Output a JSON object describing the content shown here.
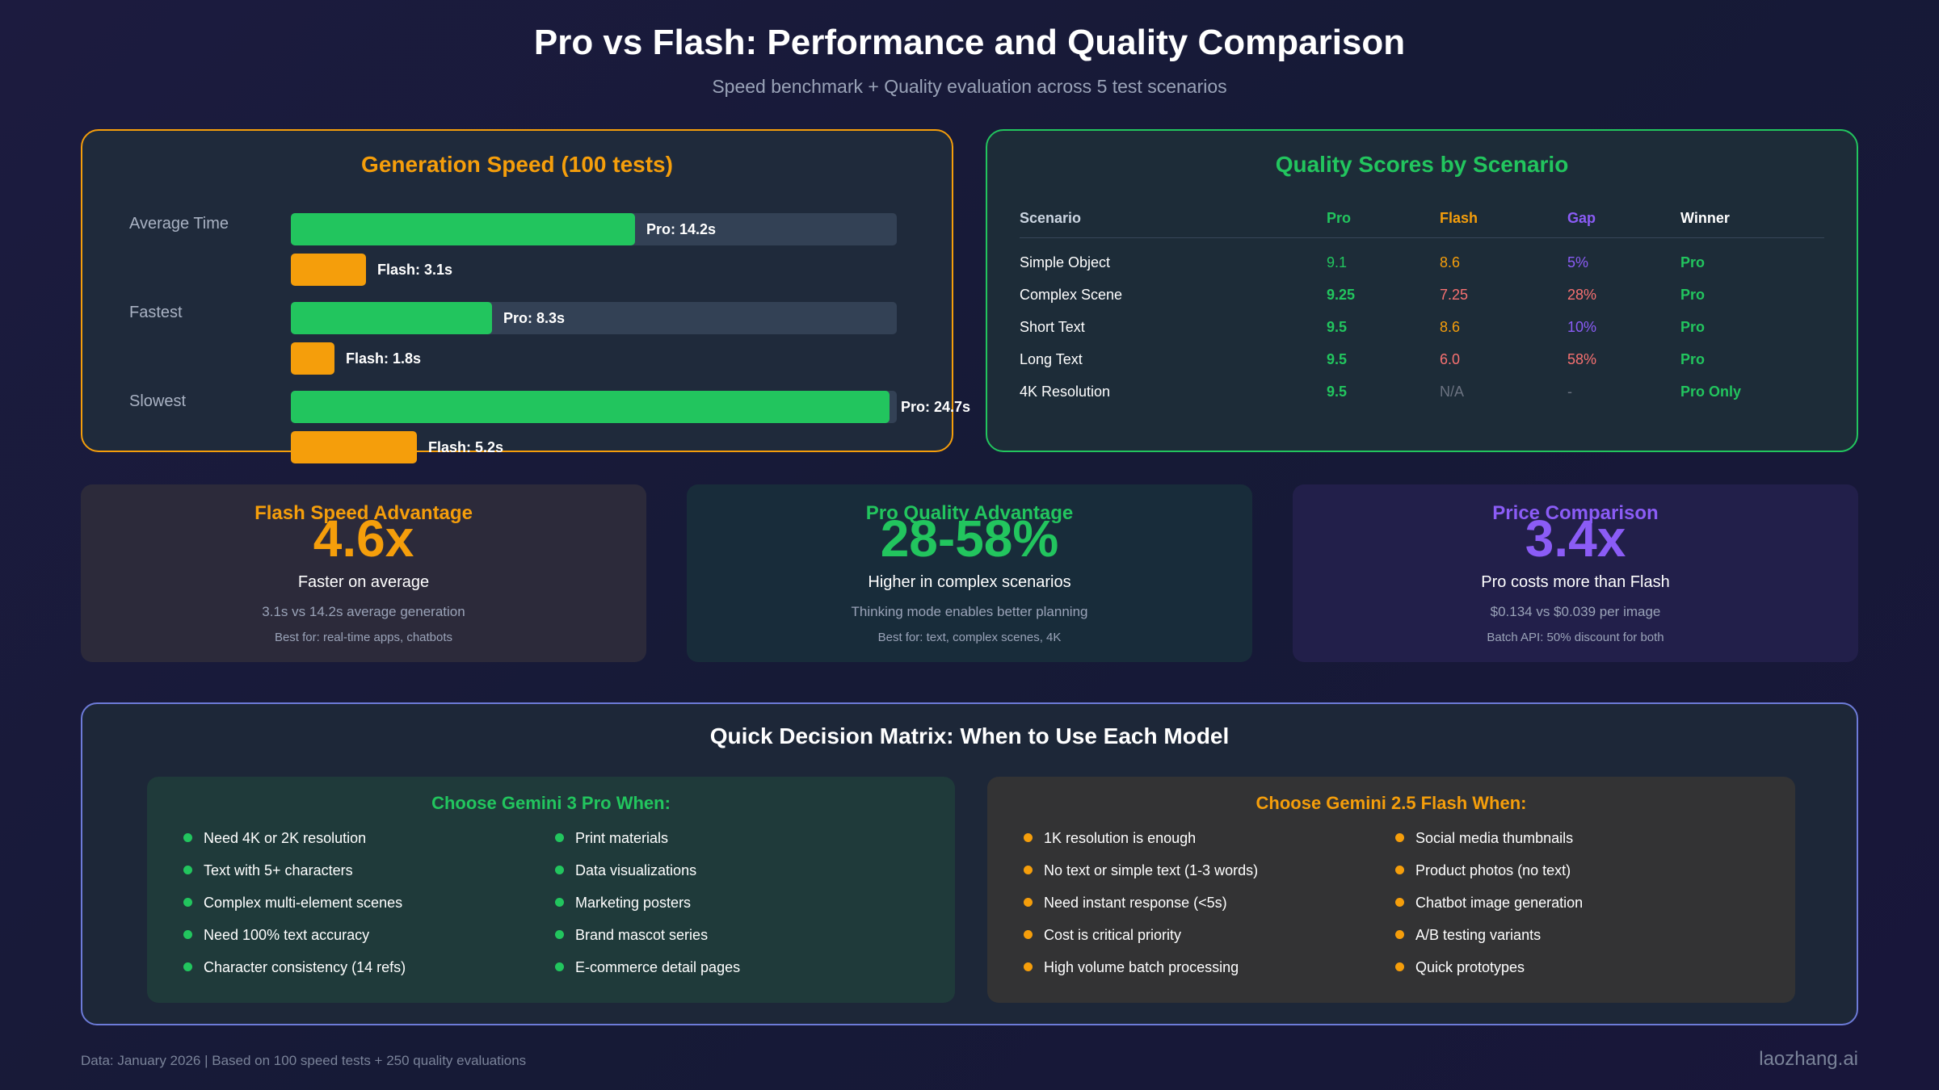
{
  "header": {
    "title": "Pro vs Flash: Performance and Quality Comparison",
    "subtitle": "Speed benchmark + Quality evaluation across 5 test scenarios"
  },
  "colors": {
    "pro": "#22c55e",
    "flash": "#f59e0b",
    "gap": "#8b5cf6",
    "gap_high": "#f87171",
    "track": "#334155"
  },
  "chart_data": [
    {
      "type": "bar",
      "orientation": "horizontal",
      "title": "Generation Speed (100 tests)",
      "categories": [
        "Average Time",
        "Fastest",
        "Slowest"
      ],
      "series": [
        {
          "name": "Pro",
          "values": [
            14.2,
            8.3,
            24.7
          ],
          "labels": [
            "Pro: 14.2s",
            "Pro: 8.3s",
            "Pro: 24.7s"
          ]
        },
        {
          "name": "Flash",
          "values": [
            3.1,
            1.8,
            5.2
          ],
          "labels": [
            "Flash: 3.1s",
            "Flash: 1.8s",
            "Flash: 5.2s"
          ]
        }
      ],
      "xlim": [
        0,
        25
      ]
    },
    {
      "type": "table",
      "title": "Quality Scores by Scenario",
      "columns": [
        "Scenario",
        "Pro",
        "Flash",
        "Gap",
        "Winner"
      ],
      "rows": [
        [
          "Simple Object",
          "9.1",
          "8.6",
          "5%",
          "Pro"
        ],
        [
          "Complex Scene",
          "9.25",
          "7.25",
          "28%",
          "Pro"
        ],
        [
          "Short Text",
          "9.5",
          "8.6",
          "10%",
          "Pro"
        ],
        [
          "Long Text",
          "9.5",
          "6.0",
          "58%",
          "Pro"
        ],
        [
          "4K Resolution",
          "9.5",
          "N/A",
          "-",
          "Pro Only"
        ]
      ]
    }
  ],
  "cards": [
    {
      "title": "Flash Speed Advantage",
      "big": "4.6x",
      "desc": "Faster on average",
      "sub": "3.1s vs 14.2s average generation",
      "best": "Best for: real-time apps, chatbots",
      "color": "#f59e0b"
    },
    {
      "title": "Pro Quality Advantage",
      "big": "28-58%",
      "desc": "Higher in complex scenarios",
      "sub": "Thinking mode enables better planning",
      "best": "Best for: text, complex scenes, 4K",
      "color": "#22c55e"
    },
    {
      "title": "Price Comparison",
      "big": "3.4x",
      "desc": "Pro costs more than Flash",
      "sub": "$0.134 vs $0.039 per image",
      "best": "Batch API: 50% discount for both",
      "color": "#8b5cf6"
    }
  ],
  "matrix": {
    "title": "Quick Decision Matrix: When to Use Each Model",
    "pro": {
      "title": "Choose Gemini 3 Pro When:",
      "left": [
        "Need 4K or 2K resolution",
        "Text with 5+ characters",
        "Complex multi-element scenes",
        "Need 100% text accuracy",
        "Character consistency (14 refs)"
      ],
      "right": [
        "Print materials",
        "Data visualizations",
        "Marketing posters",
        "Brand mascot series",
        "E-commerce detail pages"
      ]
    },
    "flash": {
      "title": "Choose Gemini 2.5 Flash When:",
      "left": [
        "1K resolution is enough",
        "No text or simple text (1-3 words)",
        "Need instant response (<5s)",
        "Cost is critical priority",
        "High volume batch processing"
      ],
      "right": [
        "Social media thumbnails",
        "Product photos (no text)",
        "Chatbot image generation",
        "A/B testing variants",
        "Quick prototypes"
      ]
    }
  },
  "footer": {
    "note": "Data: January 2026 | Based on 100 speed tests + 250 quality evaluations",
    "brand": "laozhang.ai"
  }
}
